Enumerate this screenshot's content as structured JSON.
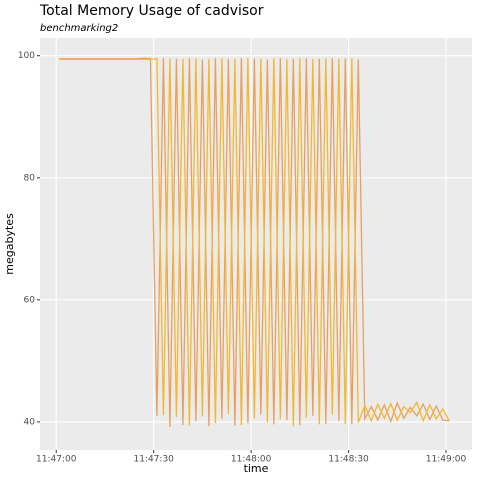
{
  "chart_data": {
    "type": "line",
    "title": "Total Memory Usage of cadvisor",
    "subtitle": "benchmarking2",
    "x_label": "time",
    "y_label": "megabytes",
    "x": [
      "11:47:01",
      "11:47:03",
      "11:47:05",
      "11:47:07",
      "11:47:09",
      "11:47:11",
      "11:47:13",
      "11:47:15",
      "11:47:17",
      "11:47:19",
      "11:47:21",
      "11:47:23",
      "11:47:25",
      "11:47:27",
      "11:47:29",
      "11:47:31",
      "11:47:33",
      "11:47:35",
      "11:47:37",
      "11:47:39",
      "11:47:41",
      "11:47:43",
      "11:47:45",
      "11:47:47",
      "11:47:49",
      "11:47:51",
      "11:47:53",
      "11:47:55",
      "11:47:57",
      "11:47:59",
      "11:48:01",
      "11:48:03",
      "11:48:05",
      "11:48:07",
      "11:48:09",
      "11:48:11",
      "11:48:13",
      "11:48:15",
      "11:48:17",
      "11:48:19",
      "11:48:21",
      "11:48:23",
      "11:48:25",
      "11:48:27",
      "11:48:29",
      "11:48:31",
      "11:48:33",
      "11:48:35",
      "11:48:37",
      "11:48:39",
      "11:48:41",
      "11:48:43",
      "11:48:45",
      "11:48:47",
      "11:48:49",
      "11:48:51",
      "11:48:53",
      "11:48:55",
      "11:48:57",
      "11:48:59",
      "11:49:01"
    ],
    "series": [
      {
        "color": "#e8a060",
        "values": [
          99.5,
          99.5,
          99.5,
          99.5,
          99.5,
          99.5,
          99.5,
          99.5,
          99.5,
          99.5,
          99.5,
          99.5,
          99.5,
          99.6,
          99.5,
          41.0,
          99.6,
          39.2,
          99.5,
          39.5,
          99.6,
          40.1,
          99.4,
          39.3,
          99.6,
          40.5,
          99.5,
          39.4,
          99.6,
          39.8,
          99.5,
          41.2,
          99.4,
          39.6,
          99.6,
          40.3,
          99.5,
          39.5,
          99.6,
          41.0,
          99.5,
          39.7,
          99.6,
          40.2,
          99.5,
          39.6,
          99.4,
          40.5,
          42.5,
          40.3,
          42.8,
          40.1,
          43.1,
          40.6,
          42.4,
          41.0,
          42.9,
          40.4,
          42.6,
          40.3,
          40.2
        ]
      },
      {
        "color": "#f4b830",
        "values": [
          99.4,
          99.4,
          99.4,
          99.4,
          99.4,
          99.4,
          99.4,
          99.4,
          99.4,
          99.4,
          99.4,
          99.4,
          99.4,
          99.4,
          99.4,
          99.5,
          41.1,
          99.6,
          40.8,
          99.5,
          39.4,
          99.6,
          40.9,
          99.5,
          39.8,
          99.6,
          41.3,
          99.5,
          39.5,
          99.6,
          40.6,
          99.5,
          39.9,
          99.6,
          40.4,
          99.5,
          39.3,
          99.6,
          40.7,
          99.5,
          39.6,
          99.6,
          41.2,
          99.5,
          39.7,
          99.6,
          39.9,
          42.7,
          40.2,
          42.9,
          40.6,
          43.0,
          40.3,
          42.5,
          41.5,
          43.2,
          40.2,
          42.8,
          40.5,
          42.1,
          40.2
        ]
      }
    ],
    "xlim": [
      "11:46:55",
      "11:49:08"
    ],
    "xticks": [
      "11:47:00",
      "11:47:30",
      "11:48:00",
      "11:48:30",
      "11:49:00"
    ],
    "ylim": [
      35.4,
      102.9
    ],
    "yticks": [
      40,
      60,
      80,
      100
    ],
    "grid": true
  }
}
